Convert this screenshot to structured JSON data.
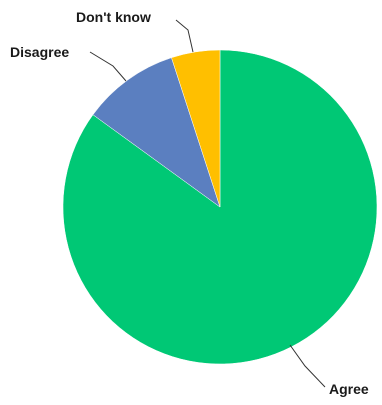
{
  "chart_data": {
    "type": "pie",
    "title": "",
    "slices": [
      {
        "label": "Agree",
        "value": 85,
        "color": "#00c875"
      },
      {
        "label": "Disagree",
        "value": 10,
        "color": "#5b7fc0"
      },
      {
        "label": "Don't know",
        "value": 5,
        "color": "#ffbf00"
      }
    ],
    "start": "12 o'clock",
    "direction": "clockwise",
    "legend": "none"
  }
}
